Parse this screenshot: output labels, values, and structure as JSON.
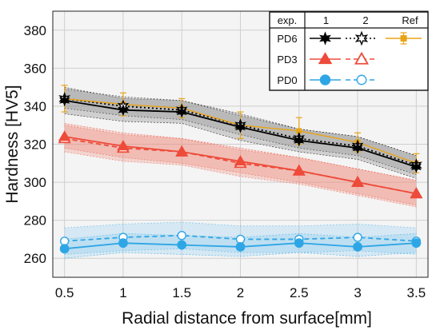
{
  "chart_data": {
    "type": "line",
    "xlabel": "Radial distance from surface[mm]",
    "ylabel": "Hardness [HV5]",
    "xlim": [
      0.4,
      3.6
    ],
    "ylim": [
      250,
      390
    ],
    "xticks": [
      "0.5",
      "1",
      "1.5",
      "2",
      "2.5",
      "3",
      "3.5"
    ],
    "yticks": [
      "260",
      "280",
      "300",
      "320",
      "340",
      "360",
      "380"
    ],
    "grid": true,
    "x": [
      0.5,
      1,
      1.5,
      2,
      2.5,
      3,
      3.5
    ],
    "legend": {
      "placement": "top-right",
      "header": [
        "exp.",
        "1",
        "2",
        "Ref"
      ],
      "rows": [
        "PD6",
        "PD3",
        "PD0"
      ]
    },
    "series": [
      {
        "name": "PD6 exp.1",
        "group": "PD6",
        "style": "solid",
        "marker": "star-filled",
        "color": "#000000",
        "values": [
          343,
          338,
          337,
          329,
          322,
          318,
          308
        ],
        "band": [
          [
            336,
            350
          ],
          [
            332,
            344
          ],
          [
            331,
            343
          ],
          [
            322,
            336
          ],
          [
            316,
            328
          ],
          [
            312,
            324
          ],
          [
            302,
            314
          ]
        ]
      },
      {
        "name": "PD6 exp.2",
        "group": "PD6",
        "style": "dotted",
        "marker": "star-open",
        "color": "#000000",
        "values": [
          344,
          340,
          338,
          330,
          323,
          319,
          309
        ],
        "band": [
          [
            339,
            349
          ],
          [
            335,
            345
          ],
          [
            333,
            343
          ],
          [
            325,
            335
          ],
          [
            318,
            328
          ],
          [
            314,
            324
          ],
          [
            304,
            314
          ]
        ]
      },
      {
        "name": "PD6 Ref",
        "group": "PD6",
        "style": "solid",
        "marker": "square-err",
        "color": "#E8A317",
        "values": [
          344,
          341,
          339,
          330,
          327,
          321,
          310
        ],
        "errors": [
          7,
          6,
          5,
          7,
          7,
          5,
          5
        ]
      },
      {
        "name": "PD3 exp.1",
        "group": "PD3",
        "style": "solid",
        "marker": "triangle-filled",
        "color": "#EE4B3A",
        "values": [
          324,
          319,
          316,
          311,
          306,
          300,
          294
        ],
        "band": [
          [
            318,
            331
          ],
          [
            313,
            326
          ],
          [
            310,
            323
          ],
          [
            305,
            318
          ],
          [
            300,
            313
          ],
          [
            294,
            307
          ],
          [
            288,
            301
          ]
        ]
      },
      {
        "name": "PD3 exp.2",
        "group": "PD3",
        "style": "dashed",
        "marker": "triangle-open",
        "color": "#EE4B3A",
        "values": [
          323,
          318,
          316,
          310,
          306,
          300,
          294
        ],
        "band": [
          [
            316,
            330
          ],
          [
            311,
            325
          ],
          [
            309,
            323
          ],
          [
            303,
            317
          ],
          [
            299,
            313
          ],
          [
            293,
            307
          ],
          [
            287,
            301
          ]
        ]
      },
      {
        "name": "PD0 exp.1",
        "group": "PD0",
        "style": "solid",
        "marker": "circle-filled",
        "color": "#2EA6E6",
        "values": [
          265,
          268,
          267,
          266,
          268,
          266,
          268
        ],
        "band": [
          [
            260,
            270
          ],
          [
            263,
            273
          ],
          [
            262,
            272
          ],
          [
            261,
            271
          ],
          [
            263,
            273
          ],
          [
            261,
            271
          ],
          [
            263,
            273
          ]
        ]
      },
      {
        "name": "PD0 exp.2",
        "group": "PD0",
        "style": "dashed",
        "marker": "circle-open",
        "color": "#2EA6E6",
        "values": [
          269,
          271,
          272,
          270,
          270,
          271,
          269
        ],
        "band": [
          [
            262,
            276
          ],
          [
            264,
            278
          ],
          [
            265,
            279
          ],
          [
            263,
            277
          ],
          [
            263,
            277
          ],
          [
            264,
            278
          ],
          [
            262,
            276
          ]
        ]
      }
    ]
  }
}
